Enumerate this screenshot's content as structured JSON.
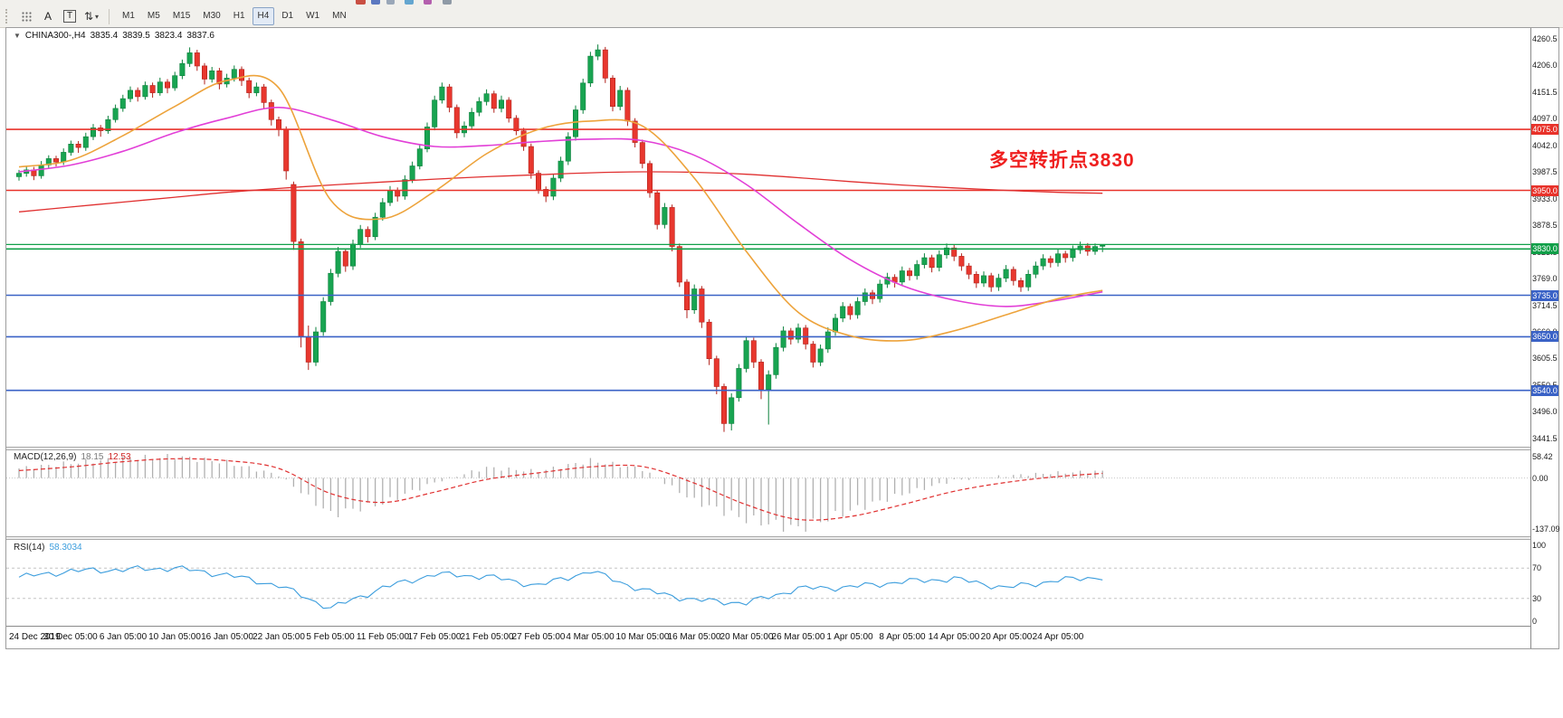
{
  "toolbar": {
    "tool_a": "A",
    "tool_t": "T",
    "cursor_glyph": "⇅",
    "caret_glyph": "▾",
    "timeframes": [
      "M1",
      "M5",
      "M15",
      "M30",
      "H1",
      "H4",
      "D1",
      "W1",
      "MN"
    ],
    "active": "H4"
  },
  "top_fragments": [
    {
      "x": 393,
      "w": 11,
      "color": "#c94f43"
    },
    {
      "x": 410,
      "w": 10,
      "color": "#5b78c0"
    },
    {
      "x": 427,
      "w": 9,
      "color": "#9aa7b8"
    },
    {
      "x": 447,
      "w": 10,
      "color": "#64a6d0"
    },
    {
      "x": 468,
      "w": 9,
      "color": "#b45fae"
    },
    {
      "x": 489,
      "w": 10,
      "color": "#8f9aa6"
    }
  ],
  "chart": {
    "title": {
      "expander": "▼",
      "symbol_tf": "CHINA300-,H4",
      "open": "3835.4",
      "high": "3839.5",
      "low": "3823.4",
      "close": "3837.6"
    },
    "annotation": {
      "text": "多空转折点3830",
      "color": "#ef1f1f"
    },
    "price_axis": {
      "min": 3432,
      "max": 4279,
      "labels": [
        4260.5,
        4206.0,
        4151.5,
        4097.0,
        4042.0,
        3987.5,
        3933.0,
        3878.5,
        3823.5,
        3769.0,
        3714.5,
        3660.0,
        3605.5,
        3550.5,
        3496.0,
        3441.5
      ]
    },
    "levels": [
      {
        "price": 4075.0,
        "label": "4075.0",
        "color": "#e8322a",
        "width": 1.6
      },
      {
        "price": 3950.0,
        "label": "3950.0",
        "color": "#e8322a",
        "width": 1.6
      },
      {
        "price": 3839.0,
        "label": "",
        "color": "#11a049",
        "width": 1.2
      },
      {
        "price": 3830.0,
        "label": "3830.0",
        "color": "#11a049",
        "width": 1.6
      },
      {
        "price": 3735.0,
        "label": "3735.0",
        "color": "#3a62c6",
        "width": 1.6
      },
      {
        "price": 3650.0,
        "label": "3650.0",
        "color": "#3a62c6",
        "width": 1.6
      },
      {
        "price": 3540.0,
        "label": "3540.0",
        "color": "#3a62c6",
        "width": 1.6
      }
    ],
    "time_labels": [
      "24 Dec 2019",
      "30 Dec 05:00",
      "6 Jan 05:00",
      "10 Jan 05:00",
      "16 Jan 05:00",
      "22 Jan 05:00",
      "5 Feb 05:00",
      "11 Feb 05:00",
      "17 Feb 05:00",
      "21 Feb 05:00",
      "27 Feb 05:00",
      "4 Mar 05:00",
      "10 Mar 05:00",
      "16 Mar 05:00",
      "20 Mar 05:00",
      "26 Mar 05:00",
      "1 Apr 05:00",
      "8 Apr 05:00",
      "14 Apr 05:00",
      "20 Apr 05:00",
      "24 Apr 05:00"
    ]
  },
  "macd": {
    "name": "MACD(12,26,9)",
    "main_value": "18.15",
    "signal_value": "12.53",
    "axis": [
      "58.42",
      "0.00",
      "-137.09"
    ],
    "axis_values": [
      58.42,
      0,
      -137.09
    ],
    "range": [
      -150,
      65
    ]
  },
  "rsi": {
    "name": "RSI(14)",
    "value": "58.3034",
    "axis": [
      "100",
      "70",
      "30",
      "0"
    ],
    "axis_values": [
      100,
      70,
      30,
      0
    ],
    "levels": [
      70,
      30
    ]
  },
  "chart_data": {
    "type": "candlestick",
    "title": "CHINA300- H4",
    "x_labels": [
      "24 Dec 2019",
      "30 Dec 05:00",
      "6 Jan 05:00",
      "10 Jan 05:00",
      "16 Jan 05:00",
      "22 Jan 05:00",
      "5 Feb 05:00",
      "11 Feb 05:00",
      "17 Feb 05:00",
      "21 Feb 05:00",
      "27 Feb 05:00",
      "4 Mar 05:00",
      "10 Mar 05:00",
      "16 Mar 05:00",
      "20 Mar 05:00",
      "26 Mar 05:00",
      "1 Apr 05:00",
      "8 Apr 05:00",
      "14 Apr 05:00",
      "20 Apr 05:00",
      "24 Apr 05:00"
    ],
    "ylim": [
      3441.5,
      4260.5
    ],
    "candles": [
      [
        3978,
        3992,
        3970,
        3985
      ],
      [
        3985,
        3999,
        3978,
        3992
      ],
      [
        3992,
        3998,
        3971,
        3980
      ],
      [
        3980,
        4010,
        3974,
        4002
      ],
      [
        4002,
        4022,
        3996,
        4015
      ],
      [
        4015,
        4021,
        3999,
        4008
      ],
      [
        4008,
        4036,
        4002,
        4028
      ],
      [
        4028,
        4052,
        4021,
        4045
      ],
      [
        4045,
        4051,
        4027,
        4038
      ],
      [
        4038,
        4068,
        4031,
        4060
      ],
      [
        4060,
        4086,
        4053,
        4078
      ],
      [
        4078,
        4084,
        4060,
        4072
      ],
      [
        4072,
        4103,
        4066,
        4095
      ],
      [
        4095,
        4126,
        4089,
        4118
      ],
      [
        4118,
        4146,
        4111,
        4138
      ],
      [
        4138,
        4163,
        4131,
        4155
      ],
      [
        4155,
        4161,
        4132,
        4142
      ],
      [
        4142,
        4173,
        4136,
        4165
      ],
      [
        4165,
        4171,
        4140,
        4150
      ],
      [
        4150,
        4181,
        4144,
        4172
      ],
      [
        4172,
        4178,
        4149,
        4160
      ],
      [
        4160,
        4193,
        4154,
        4185
      ],
      [
        4185,
        4218,
        4178,
        4210
      ],
      [
        4210,
        4243,
        4203,
        4232
      ],
      [
        4232,
        4238,
        4195,
        4205
      ],
      [
        4205,
        4211,
        4167,
        4178
      ],
      [
        4178,
        4203,
        4171,
        4195
      ],
      [
        4195,
        4201,
        4157,
        4168
      ],
      [
        4168,
        4189,
        4161,
        4180
      ],
      [
        4180,
        4206,
        4173,
        4198
      ],
      [
        4198,
        4204,
        4164,
        4175
      ],
      [
        4175,
        4181,
        4139,
        4150
      ],
      [
        4150,
        4171,
        4143,
        4162
      ],
      [
        4162,
        4168,
        4118,
        4130
      ],
      [
        4130,
        4136,
        4083,
        4095
      ],
      [
        4095,
        4101,
        4061,
        4075
      ],
      [
        4075,
        4081,
        3972,
        3990
      ],
      [
        3962,
        3968,
        3828,
        3845
      ],
      [
        3845,
        3851,
        3628,
        3650
      ],
      [
        3650,
        3673,
        3582,
        3598
      ],
      [
        3598,
        3670,
        3590,
        3660
      ],
      [
        3660,
        3731,
        3652,
        3722
      ],
      [
        3722,
        3789,
        3714,
        3780
      ],
      [
        3780,
        3834,
        3772,
        3825
      ],
      [
        3825,
        3831,
        3783,
        3795
      ],
      [
        3795,
        3849,
        3787,
        3840
      ],
      [
        3840,
        3879,
        3832,
        3870
      ],
      [
        3870,
        3876,
        3843,
        3855
      ],
      [
        3855,
        3904,
        3848,
        3895
      ],
      [
        3895,
        3934,
        3888,
        3925
      ],
      [
        3925,
        3959,
        3918,
        3950
      ],
      [
        3950,
        3956,
        3927,
        3938
      ],
      [
        3938,
        3981,
        3931,
        3972
      ],
      [
        3972,
        4009,
        3965,
        4000
      ],
      [
        4000,
        4044,
        3993,
        4035
      ],
      [
        4035,
        4089,
        4028,
        4080
      ],
      [
        4080,
        4144,
        4073,
        4135
      ],
      [
        4135,
        4171,
        4128,
        4162
      ],
      [
        4162,
        4168,
        4110,
        4120
      ],
      [
        4120,
        4126,
        4057,
        4068
      ],
      [
        4068,
        4091,
        4059,
        4082
      ],
      [
        4082,
        4119,
        4074,
        4110
      ],
      [
        4110,
        4141,
        4102,
        4132
      ],
      [
        4132,
        4157,
        4124,
        4148
      ],
      [
        4148,
        4154,
        4109,
        4118
      ],
      [
        4118,
        4144,
        4110,
        4135
      ],
      [
        4135,
        4141,
        4089,
        4098
      ],
      [
        4098,
        4104,
        4063,
        4072
      ],
      [
        4072,
        4078,
        4031,
        4040
      ],
      [
        4040,
        4046,
        3974,
        3985
      ],
      [
        3985,
        3991,
        3943,
        3952
      ],
      [
        3952,
        3958,
        3926,
        3938
      ],
      [
        3938,
        3984,
        3930,
        3975
      ],
      [
        3975,
        4019,
        3967,
        4010
      ],
      [
        4010,
        4069,
        4002,
        4060
      ],
      [
        4060,
        4124,
        4052,
        4115
      ],
      [
        4115,
        4179,
        4107,
        4170
      ],
      [
        4170,
        4234,
        4162,
        4225
      ],
      [
        4225,
        4249,
        4217,
        4238
      ],
      [
        4238,
        4244,
        4170,
        4180
      ],
      [
        4180,
        4186,
        4112,
        4122
      ],
      [
        4122,
        4164,
        4114,
        4155
      ],
      [
        4155,
        4161,
        4082,
        4092
      ],
      [
        4092,
        4098,
        4038,
        4048
      ],
      [
        4048,
        4054,
        3995,
        4005
      ],
      [
        4005,
        4011,
        3935,
        3945
      ],
      [
        3945,
        3951,
        3870,
        3880
      ],
      [
        3880,
        3924,
        3872,
        3915
      ],
      [
        3915,
        3921,
        3825,
        3835
      ],
      [
        3835,
        3841,
        3752,
        3762
      ],
      [
        3762,
        3768,
        3688,
        3705
      ],
      [
        3705,
        3757,
        3697,
        3748
      ],
      [
        3748,
        3754,
        3668,
        3680
      ],
      [
        3680,
        3686,
        3592,
        3605
      ],
      [
        3605,
        3611,
        3532,
        3548
      ],
      [
        3548,
        3554,
        3455,
        3472
      ],
      [
        3472,
        3534,
        3458,
        3525
      ],
      [
        3525,
        3594,
        3517,
        3585
      ],
      [
        3585,
        3651,
        3577,
        3642
      ],
      [
        3642,
        3648,
        3586,
        3598
      ],
      [
        3598,
        3604,
        3522,
        3542
      ],
      [
        3542,
        3581,
        3470,
        3572
      ],
      [
        3572,
        3637,
        3564,
        3628
      ],
      [
        3628,
        3671,
        3620,
        3662
      ],
      [
        3662,
        3668,
        3634,
        3645
      ],
      [
        3645,
        3677,
        3637,
        3668
      ],
      [
        3668,
        3674,
        3624,
        3635
      ],
      [
        3635,
        3641,
        3587,
        3598
      ],
      [
        3598,
        3634,
        3590,
        3625
      ],
      [
        3625,
        3669,
        3617,
        3660
      ],
      [
        3660,
        3697,
        3652,
        3688
      ],
      [
        3688,
        3721,
        3680,
        3712
      ],
      [
        3712,
        3718,
        3685,
        3695
      ],
      [
        3695,
        3731,
        3687,
        3722
      ],
      [
        3722,
        3749,
        3714,
        3740
      ],
      [
        3740,
        3746,
        3717,
        3728
      ],
      [
        3728,
        3767,
        3720,
        3758
      ],
      [
        3758,
        3781,
        3750,
        3772
      ],
      [
        3772,
        3778,
        3751,
        3762
      ],
      [
        3762,
        3794,
        3754,
        3785
      ],
      [
        3785,
        3791,
        3765,
        3775
      ],
      [
        3775,
        3807,
        3767,
        3798
      ],
      [
        3798,
        3821,
        3790,
        3812
      ],
      [
        3812,
        3818,
        3782,
        3792
      ],
      [
        3792,
        3827,
        3784,
        3818
      ],
      [
        3818,
        3841,
        3810,
        3832
      ],
      [
        3832,
        3838,
        3805,
        3815
      ],
      [
        3815,
        3821,
        3785,
        3795
      ],
      [
        3795,
        3801,
        3768,
        3778
      ],
      [
        3778,
        3784,
        3750,
        3760
      ],
      [
        3760,
        3784,
        3752,
        3775
      ],
      [
        3775,
        3781,
        3742,
        3752
      ],
      [
        3752,
        3779,
        3744,
        3770
      ],
      [
        3770,
        3797,
        3762,
        3788
      ],
      [
        3788,
        3794,
        3755,
        3765
      ],
      [
        3765,
        3771,
        3742,
        3752
      ],
      [
        3752,
        3787,
        3744,
        3778
      ],
      [
        3778,
        3804,
        3770,
        3795
      ],
      [
        3795,
        3819,
        3787,
        3810
      ],
      [
        3810,
        3816,
        3792,
        3802
      ],
      [
        3802,
        3829,
        3794,
        3820
      ],
      [
        3820,
        3826,
        3802,
        3812
      ],
      [
        3812,
        3837,
        3804,
        3828
      ],
      [
        3828,
        3845,
        3820,
        3836
      ],
      [
        3836,
        3842,
        3816,
        3825
      ],
      [
        3825,
        3841,
        3818,
        3835
      ],
      [
        3835.4,
        3839.5,
        3823.4,
        3837.6
      ]
    ],
    "sample_bars": [
      0,
      7,
      14,
      21,
      28,
      35,
      42,
      49,
      56,
      63,
      70,
      77,
      84,
      91,
      98,
      105,
      112,
      119,
      126,
      133,
      140,
      146
    ],
    "series": [
      {
        "name": "MA fast (orange)",
        "key": "ma_orange"
      },
      {
        "name": "MA mid (magenta)",
        "key": "ma_magenta"
      },
      {
        "name": "MA slow (red)",
        "key": "ma_red"
      }
    ],
    "ma_orange": [
      3998,
      4012,
      4062,
      4122,
      4175,
      4160,
      3930,
      3892,
      3948,
      4025,
      4075,
      4092,
      4082,
      3975,
      3825,
      3700,
      3652,
      3642,
      3662,
      3695,
      3728,
      3745
    ],
    "ma_magenta": [
      3988,
      4002,
      4030,
      4068,
      4098,
      4120,
      4095,
      4060,
      4040,
      4042,
      4050,
      4055,
      4052,
      4022,
      3962,
      3882,
      3808,
      3755,
      3725,
      3712,
      3725,
      3742
    ],
    "ma_red": [
      3906,
      3916,
      3926,
      3936,
      3946,
      3954,
      3961,
      3967,
      3973,
      3978,
      3982,
      3986,
      3988,
      3987,
      3983,
      3976,
      3968,
      3961,
      3955,
      3950,
      3946,
      3944
    ],
    "macd_samples": [
      26,
      40,
      52,
      58,
      42,
      8,
      -98,
      -68,
      -12,
      28,
      18,
      47,
      24,
      -62,
      -112,
      -137,
      -88,
      -44,
      -6,
      6,
      14,
      18.15
    ],
    "macd_signal_samples": [
      20,
      30,
      44,
      52,
      47,
      26,
      -42,
      -66,
      -38,
      -4,
      14,
      30,
      31,
      -14,
      -72,
      -112,
      -104,
      -72,
      -36,
      -12,
      4,
      12.53
    ],
    "rsi_samples": [
      58,
      66,
      68,
      70,
      61,
      47,
      17,
      44,
      62,
      59,
      47,
      66,
      41,
      28,
      24,
      43,
      45,
      52,
      56,
      44,
      54,
      58.3
    ],
    "colors": {
      "up_fill": "#18a451",
      "up_stroke": "#0b813c",
      "down_fill": "#e8372e",
      "down_stroke": "#b1221c",
      "ma_fast": "#eda33b",
      "ma_mid": "#e23fd7",
      "ma_slow": "#e03030",
      "macd_hist": "#b0b0b0",
      "macd_signal": "#e03030",
      "rsi_line": "#3b9ddd"
    }
  }
}
